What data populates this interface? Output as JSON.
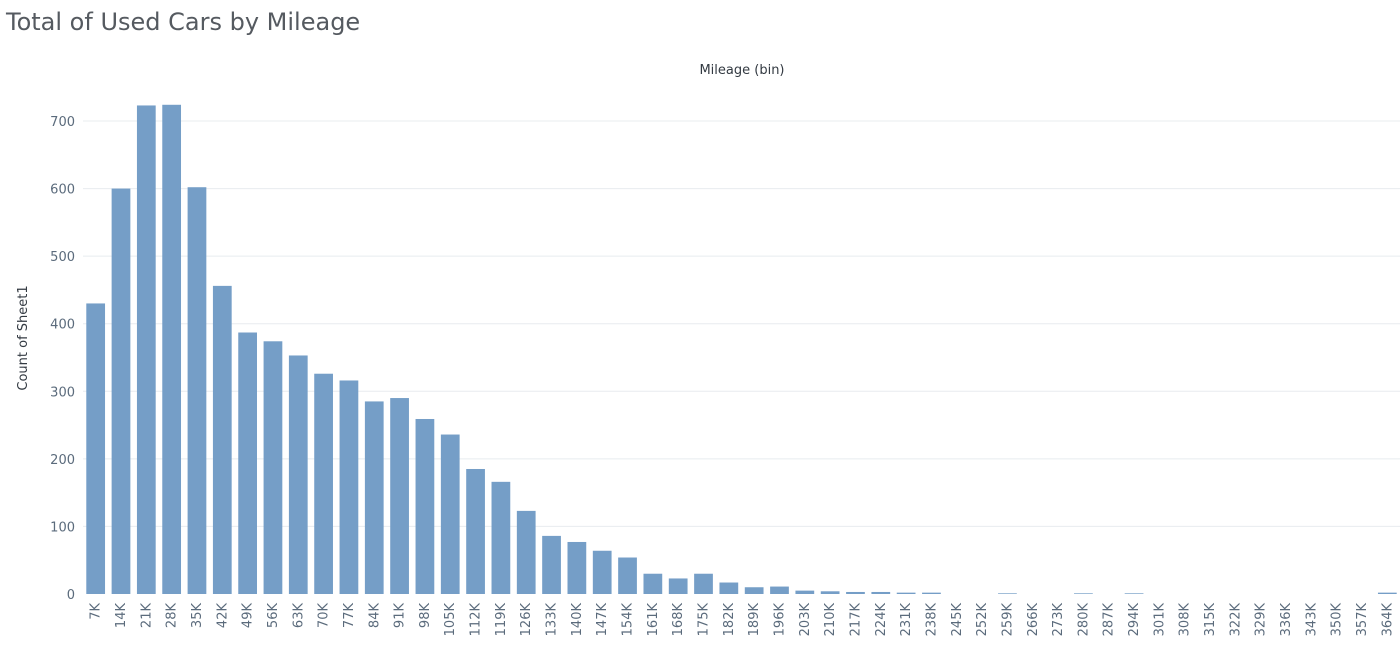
{
  "chart_data": {
    "type": "bar",
    "title": "Total of Used Cars by Mileage",
    "column_header": "Mileage (bin)",
    "xlabel": "",
    "ylabel": "Count of Sheet1",
    "ylim": [
      0,
      750
    ],
    "yticks": [
      0,
      100,
      200,
      300,
      400,
      500,
      600,
      700
    ],
    "grid": true,
    "categories": [
      "7K",
      "14K",
      "21K",
      "28K",
      "35K",
      "42K",
      "49K",
      "56K",
      "63K",
      "70K",
      "77K",
      "84K",
      "91K",
      "98K",
      "105K",
      "112K",
      "119K",
      "126K",
      "133K",
      "140K",
      "147K",
      "154K",
      "161K",
      "168K",
      "175K",
      "182K",
      "189K",
      "196K",
      "203K",
      "210K",
      "217K",
      "224K",
      "231K",
      "238K",
      "245K",
      "252K",
      "259K",
      "266K",
      "273K",
      "280K",
      "287K",
      "294K",
      "301K",
      "308K",
      "315K",
      "322K",
      "329K",
      "336K",
      "343K",
      "350K",
      "357K",
      "364K"
    ],
    "values": [
      430,
      600,
      723,
      724,
      602,
      456,
      387,
      374,
      353,
      326,
      316,
      285,
      290,
      259,
      236,
      185,
      166,
      123,
      86,
      77,
      64,
      54,
      30,
      23,
      30,
      17,
      10,
      11,
      5,
      4,
      3,
      3,
      2,
      2,
      0,
      0,
      1,
      0,
      0,
      1,
      0,
      1,
      0,
      0,
      0,
      0,
      0,
      0,
      0,
      0,
      0,
      2
    ],
    "bar_color": "#759ec7"
  }
}
